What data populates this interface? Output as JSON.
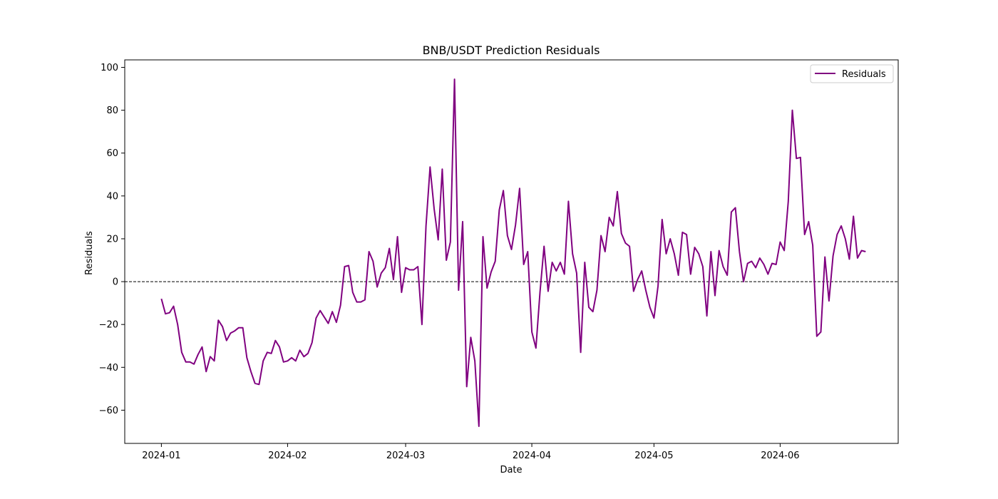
{
  "chart_data": {
    "type": "line",
    "title": "BNB/USDT Prediction Residuals",
    "xlabel": "Date",
    "ylabel": "Residuals",
    "x_start": "2024-01-01",
    "x_end": "2024-06-21",
    "x_ticks": [
      "2024-01",
      "2024-02",
      "2024-03",
      "2024-04",
      "2024-05",
      "2024-06"
    ],
    "y_ticks": [
      -60,
      -40,
      -20,
      0,
      20,
      40,
      60,
      80,
      100
    ],
    "xlim": [
      "2023-12-23",
      "2024-06-30"
    ],
    "ylim": [
      -75.5,
      103.5
    ],
    "reference_line": 0,
    "legend_location": "top-right",
    "grid": false,
    "series": [
      {
        "name": "Residuals",
        "color": "#800080",
        "values": [
          -8,
          -15,
          -14.5,
          -11.5,
          -20,
          -33,
          -37.5,
          -37.5,
          -38.5,
          -34,
          -30.5,
          -42,
          -35,
          -37,
          -18,
          -21,
          -27.5,
          -24,
          -23,
          -21.5,
          -21.5,
          -35.5,
          -42,
          -47.5,
          -48,
          -37,
          -33,
          -33.5,
          -27.5,
          -30.5,
          -37.5,
          -37,
          -35.5,
          -37,
          -32,
          -35,
          -33.5,
          -28.5,
          -17,
          -13.5,
          -16.5,
          -19.5,
          -14,
          -19,
          -11,
          7,
          7.5,
          -5,
          -9.5,
          -9.5,
          -8.5,
          14,
          9.5,
          -2.5,
          4,
          6.5,
          15.5,
          1,
          21,
          -5,
          6.5,
          5.5,
          5.5,
          7,
          -20,
          26,
          53.5,
          34,
          19.5,
          52.5,
          10,
          18.5,
          94.5,
          -4,
          28,
          -49,
          -26,
          -37,
          -67.5,
          21,
          -3,
          4.5,
          9.5,
          33.5,
          42.5,
          21.5,
          15,
          26.5,
          43.5,
          8,
          14,
          -23.5,
          -31,
          -5,
          16.5,
          -4.5,
          9,
          5,
          9,
          3.5,
          37.5,
          13,
          4,
          -33,
          9,
          -12,
          -14,
          -4,
          21.5,
          14,
          30,
          26,
          42,
          22.5,
          18,
          16.5,
          -4.5,
          1,
          5,
          -4,
          -12,
          -17,
          -2,
          29,
          13,
          20,
          13,
          3,
          23,
          22,
          3.5,
          16,
          13,
          7,
          -16,
          14,
          -6.5,
          14.5,
          7,
          3,
          32.5,
          34.5,
          14,
          0,
          8.5,
          9.5,
          6.5,
          11,
          8,
          3.5,
          8.5,
          8,
          18.5,
          14.5,
          37.5,
          80,
          57.5,
          58,
          22,
          28,
          17,
          -25.5,
          -23.5,
          11.5,
          -9,
          12,
          22,
          26,
          20,
          10.5,
          30.5,
          11,
          14.5,
          14
        ]
      }
    ]
  }
}
